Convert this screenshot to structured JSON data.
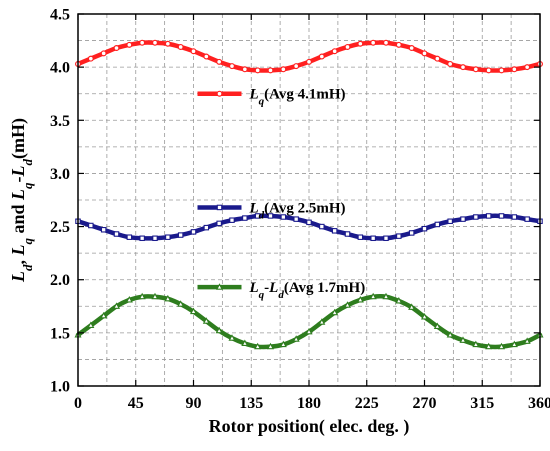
{
  "chart_data": {
    "type": "line",
    "title": "",
    "xlabel": "Rotor position( elec. deg. )",
    "ylabel": {
      "parts": [
        {
          "text": "L",
          "italic": true
        },
        {
          "text": "d",
          "italic": true,
          "sub": true
        },
        {
          "text": ", ",
          "italic": false
        },
        {
          "text": "L",
          "italic": true
        },
        {
          "text": "q",
          "italic": true,
          "sub": true
        },
        {
          "text": " and ",
          "italic": false
        },
        {
          "text": "L",
          "italic": true
        },
        {
          "text": "q",
          "italic": true,
          "sub": true
        },
        {
          "text": "-",
          "italic": false
        },
        {
          "text": "L",
          "italic": true
        },
        {
          "text": "d",
          "italic": true,
          "sub": true
        },
        {
          "text": "(mH)",
          "italic": false
        }
      ]
    },
    "xlim": [
      0,
      360
    ],
    "ylim": [
      1.0,
      4.5
    ],
    "x_ticks": [
      0,
      45,
      90,
      135,
      180,
      225,
      270,
      315,
      360
    ],
    "x_tick_labels": [
      "0",
      "45",
      "90",
      "135",
      "180",
      "225",
      "270",
      "315",
      "360"
    ],
    "y_ticks": [
      1.0,
      1.5,
      2.0,
      2.5,
      3.0,
      3.5,
      4.0,
      4.5
    ],
    "y_tick_labels": [
      "1.0",
      "1.5",
      "2.0",
      "2.5",
      "3.0",
      "3.5",
      "4.0",
      "4.5"
    ],
    "grid": true,
    "grid_style": "dashed",
    "legend_placement": "inline",
    "x": [
      0,
      10,
      20,
      30,
      40,
      50,
      60,
      70,
      80,
      90,
      100,
      110,
      120,
      130,
      140,
      150,
      160,
      170,
      180,
      190,
      200,
      210,
      220,
      230,
      240,
      250,
      260,
      270,
      280,
      290,
      300,
      310,
      320,
      330,
      340,
      350,
      360
    ],
    "series": [
      {
        "key": "lq",
        "color": "#ff2020",
        "marker": "circle",
        "values": [
          4.03,
          4.08,
          4.13,
          4.18,
          4.21,
          4.23,
          4.23,
          4.22,
          4.19,
          4.15,
          4.1,
          4.05,
          4.01,
          3.98,
          3.97,
          3.97,
          3.98,
          4.01,
          4.05,
          4.1,
          4.15,
          4.19,
          4.22,
          4.23,
          4.23,
          4.21,
          4.18,
          4.13,
          4.08,
          4.03,
          4.0,
          3.98,
          3.97,
          3.97,
          3.98,
          4.0,
          4.03
        ],
        "legend": {
          "anchor_x": 90,
          "anchor_y": 3.75,
          "parts": [
            {
              "text": "L",
              "italic": true
            },
            {
              "text": "q",
              "italic": true,
              "sub": true
            },
            {
              "text": "(Avg 4.1mH)",
              "italic": false
            }
          ]
        }
      },
      {
        "key": "ld",
        "color": "#1a1a8c",
        "marker": "square",
        "values": [
          2.55,
          2.51,
          2.47,
          2.43,
          2.4,
          2.39,
          2.39,
          2.4,
          2.42,
          2.45,
          2.49,
          2.53,
          2.56,
          2.58,
          2.6,
          2.6,
          2.59,
          2.57,
          2.54,
          2.5,
          2.46,
          2.43,
          2.4,
          2.39,
          2.39,
          2.41,
          2.44,
          2.48,
          2.52,
          2.55,
          2.57,
          2.59,
          2.6,
          2.6,
          2.59,
          2.57,
          2.55
        ],
        "legend": {
          "anchor_x": 90,
          "anchor_y": 2.68,
          "parts": [
            {
              "text": "L",
              "italic": true
            },
            {
              "text": "d",
              "italic": true,
              "sub": true
            },
            {
              "text": "(Avg 2.5mH)",
              "italic": false
            }
          ]
        }
      },
      {
        "key": "lq_minus_ld",
        "color": "#2e7d1e",
        "marker": "triangle",
        "values": [
          1.48,
          1.57,
          1.66,
          1.75,
          1.81,
          1.84,
          1.84,
          1.82,
          1.77,
          1.7,
          1.61,
          1.52,
          1.45,
          1.4,
          1.37,
          1.37,
          1.39,
          1.44,
          1.51,
          1.6,
          1.69,
          1.76,
          1.81,
          1.84,
          1.84,
          1.8,
          1.74,
          1.65,
          1.56,
          1.48,
          1.43,
          1.39,
          1.37,
          1.37,
          1.39,
          1.42,
          1.48
        ],
        "legend": {
          "anchor_x": 90,
          "anchor_y": 1.93,
          "parts": [
            {
              "text": "L",
              "italic": true
            },
            {
              "text": "q",
              "italic": true,
              "sub": true
            },
            {
              "text": "-",
              "italic": false
            },
            {
              "text": "L",
              "italic": true
            },
            {
              "text": "d",
              "italic": true,
              "sub": true
            },
            {
              "text": "(Avg 1.7mH)",
              "italic": false
            }
          ]
        }
      }
    ]
  }
}
